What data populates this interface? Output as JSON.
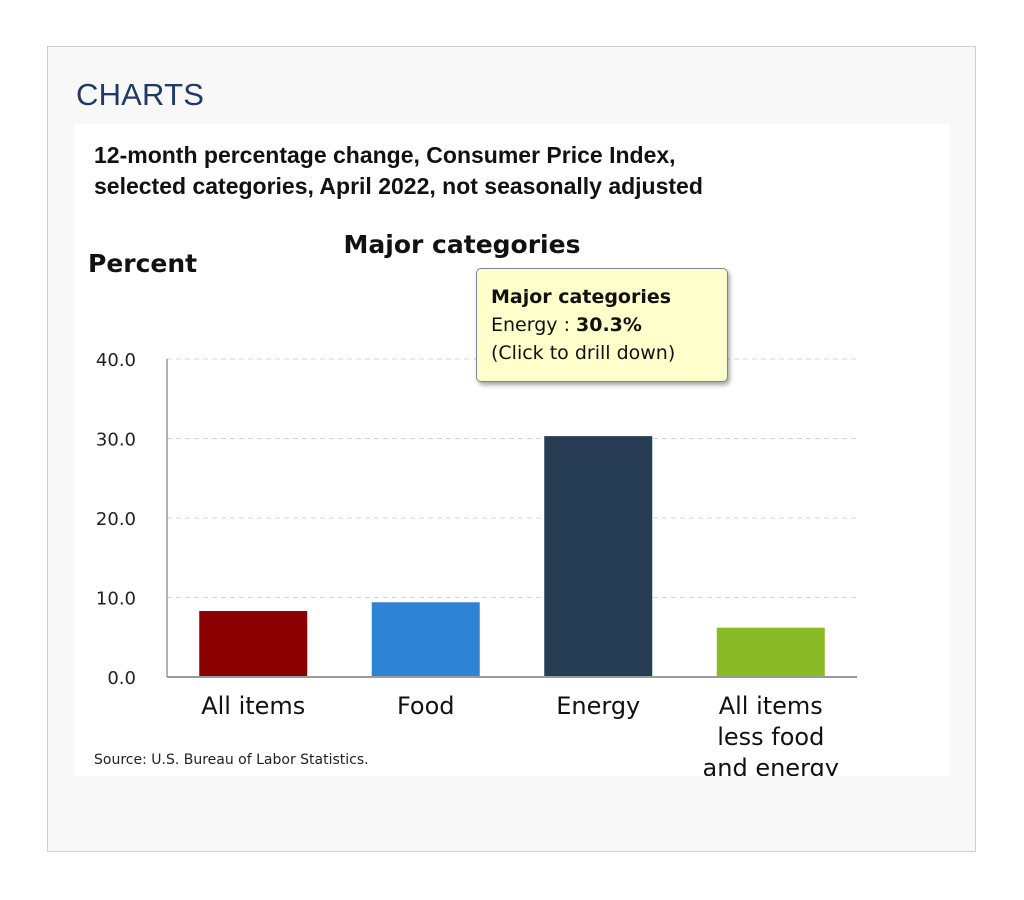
{
  "section": {
    "heading": "CHARTS"
  },
  "source_note": "Source: U.S. Bureau of Labor Statistics.",
  "tooltip": {
    "title": "Major categories",
    "series_label": "Energy",
    "separator": " : ",
    "value": "30.3%",
    "hint": "(Click to drill down)"
  },
  "chart_data": {
    "type": "bar",
    "title": "12-month percentage change, Consumer Price Index, selected categories, April 2022, not seasonally adjusted",
    "title_lines": [
      "12-month percentage change, Consumer Price Index,",
      "selected categories, April 2022, not seasonally adjusted"
    ],
    "subtitle": "Major categories",
    "ylabel": "Percent",
    "xlabel": "",
    "ylim": [
      0,
      40
    ],
    "yticks": [
      "0.0",
      "10.0",
      "20.0",
      "30.0",
      "40.0"
    ],
    "ytick_values": [
      0,
      10,
      20,
      30,
      40
    ],
    "grid": true,
    "legend": "none",
    "categories": [
      [
        "All items"
      ],
      [
        "Food"
      ],
      [
        "Energy"
      ],
      [
        "All items",
        "less food",
        "and energy"
      ]
    ],
    "values": [
      8.3,
      9.4,
      30.3,
      6.2
    ],
    "colors": [
      "#8b0000",
      "#2e83d6",
      "#273d54",
      "#8aba25"
    ]
  }
}
